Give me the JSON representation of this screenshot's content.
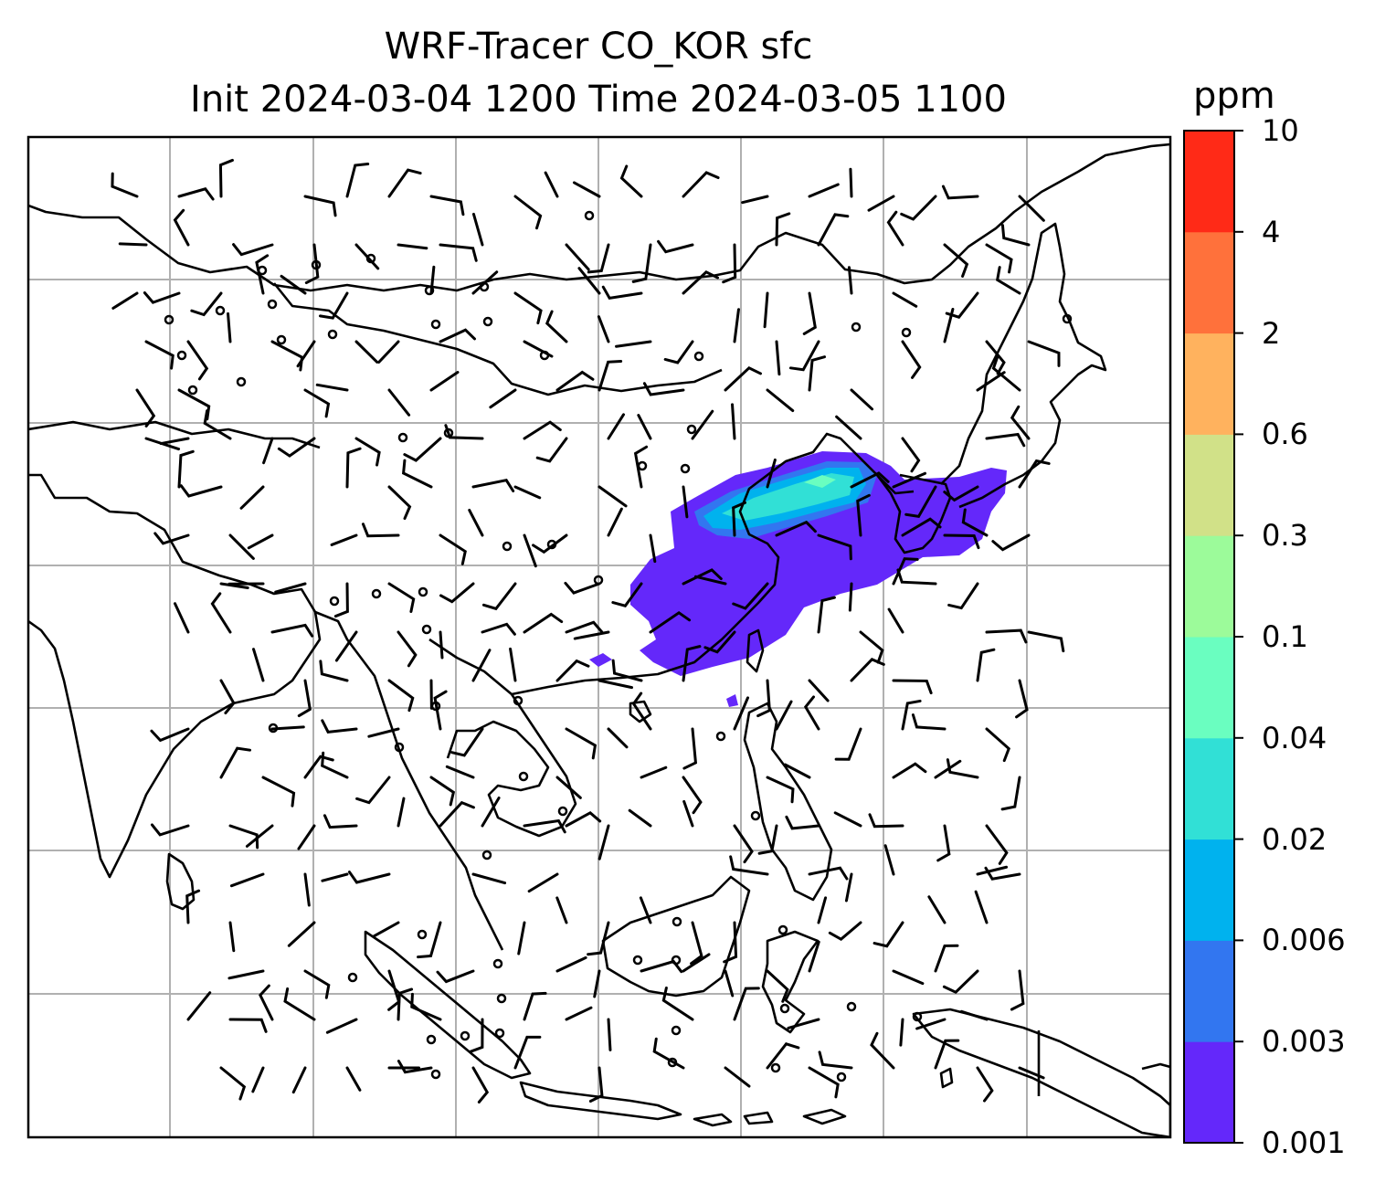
{
  "title": {
    "line1": "WRF-Tracer CO_KOR sfc",
    "line2": "Init 2024-03-04 1200 Time 2024-03-05 1100"
  },
  "colorbar": {
    "unit": "ppm",
    "levels": [
      "0.001",
      "0.003",
      "0.006",
      "0.02",
      "0.04",
      "0.1",
      "0.3",
      "0.6",
      "2",
      "4",
      "10"
    ],
    "colors": [
      "#6428fa",
      "#3276f0",
      "#00b2ee",
      "#31e0d6",
      "#6afec0",
      "#9cfb9a",
      "#d1e188",
      "#ffb25e",
      "#ff713b",
      "#ff2a17"
    ]
  },
  "map": {
    "layers": [
      "coastlines",
      "gridlines",
      "wind-barbs",
      "tracer-concentration"
    ],
    "gridline_color": "#b0b0b0",
    "coastline_color": "#000000"
  }
}
